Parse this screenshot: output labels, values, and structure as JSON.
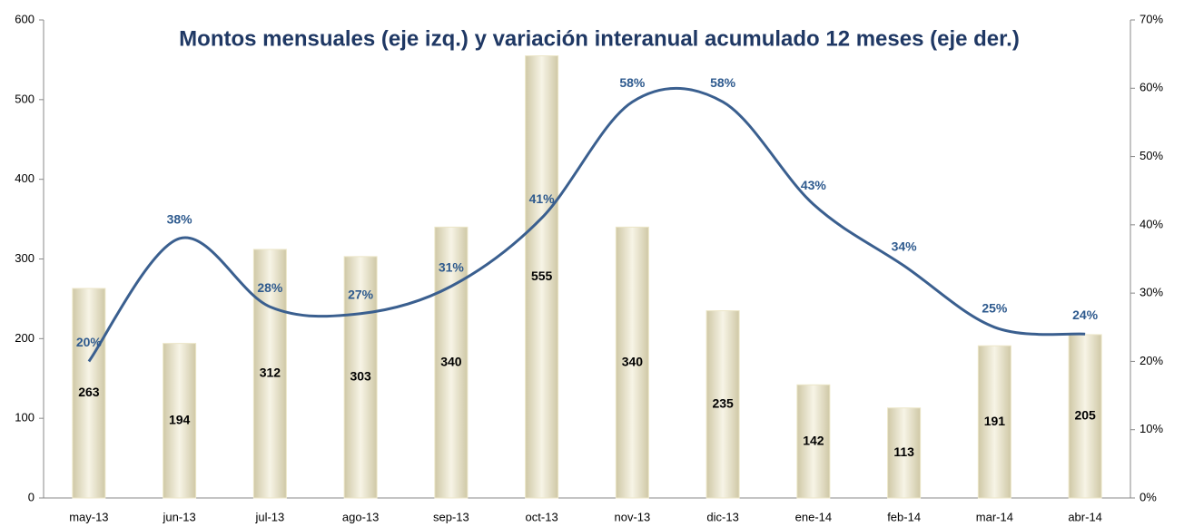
{
  "chart_data": {
    "type": "bar",
    "title": "Montos mensuales (eje izq.) y variación interanual acumulado 12 meses (eje der.)",
    "categories": [
      "may-13",
      "jun-13",
      "jul-13",
      "ago-13",
      "sep-13",
      "oct-13",
      "nov-13",
      "dic-13",
      "ene-14",
      "feb-14",
      "mar-14",
      "abr-14"
    ],
    "series": [
      {
        "type": "bar",
        "color": "#ece6c8",
        "values": [
          263,
          194,
          312,
          303,
          340,
          555,
          340,
          235,
          142,
          113,
          191,
          205
        ]
      },
      {
        "type": "line",
        "axis": "y2",
        "color": "#3a5f8f",
        "values": [
          20,
          38,
          28,
          27,
          31,
          41,
          58,
          58,
          43,
          34,
          25,
          24
        ],
        "value_labels": [
          "20%",
          "38%",
          "28%",
          "27%",
          "31%",
          "41%",
          "58%",
          "58%",
          "43%",
          "34%",
          "25%",
          "24%"
        ]
      }
    ],
    "ylim": [
      0,
      600
    ],
    "yticks": [
      0,
      100,
      200,
      300,
      400,
      500,
      600
    ],
    "y2lim": [
      0,
      70
    ],
    "y2ticks": [
      {
        "value": 0,
        "label": "0%"
      },
      {
        "value": 10,
        "label": "10%"
      },
      {
        "value": 20,
        "label": "20%"
      },
      {
        "value": 30,
        "label": "30%"
      },
      {
        "value": 40,
        "label": "40%"
      },
      {
        "value": 50,
        "label": "50%"
      },
      {
        "value": 60,
        "label": "60%"
      },
      {
        "value": 70,
        "label": "70%"
      }
    ]
  }
}
